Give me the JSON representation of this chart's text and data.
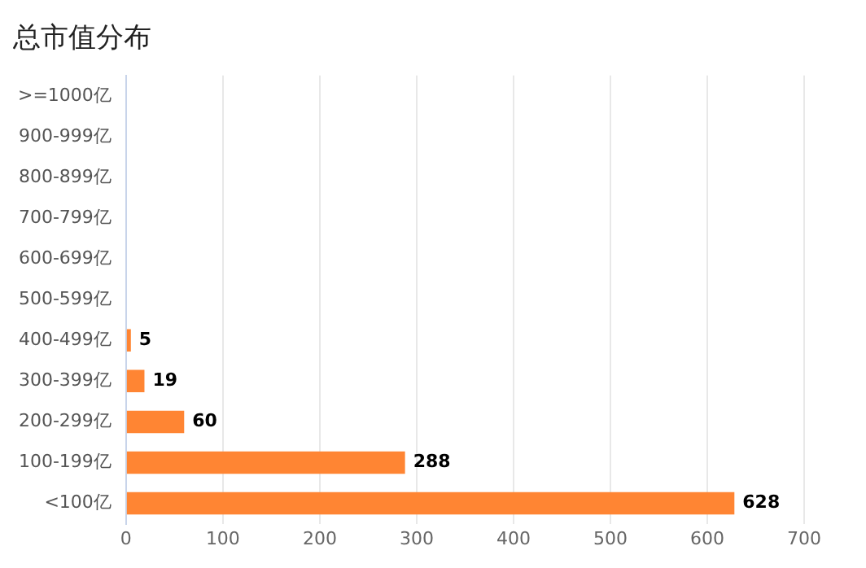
{
  "chart_data": {
    "type": "bar",
    "orientation": "horizontal",
    "title": "总市值分布",
    "categories": [
      ">=1000亿",
      "900-999亿",
      "800-899亿",
      "700-799亿",
      "600-699亿",
      "500-599亿",
      "400-499亿",
      "300-399亿",
      "200-299亿",
      "100-199亿",
      "<100亿"
    ],
    "values": [
      0,
      0,
      0,
      0,
      0,
      0,
      5,
      19,
      60,
      288,
      628
    ],
    "value_labels": [
      null,
      null,
      null,
      null,
      null,
      null,
      "5",
      "19",
      "60",
      "288",
      "628"
    ],
    "color": "#ff8533",
    "xlim": [
      0,
      700
    ],
    "xticks": [
      0,
      100,
      200,
      300,
      400,
      500,
      600,
      700
    ],
    "grid": "x",
    "legend": false
  }
}
